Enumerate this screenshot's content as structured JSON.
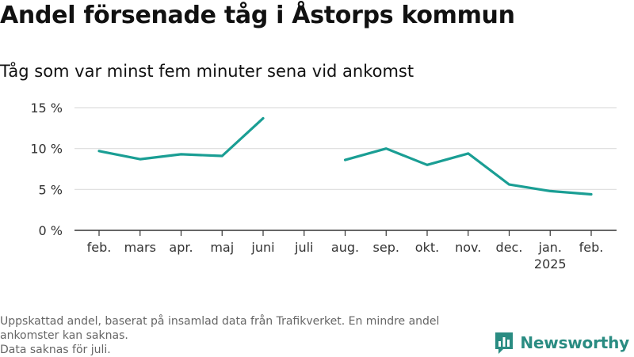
{
  "title": "Andel försenade tåg i Åstorps kommun",
  "subtitle": "Tåg som var minst fem minuter sena vid ankomst",
  "footnote": {
    "line1": "Uppskattad andel, baserat på insamlad data från Trafikverket. En mindre andel ankomster kan saknas.",
    "line2": "Data saknas för juli."
  },
  "brand": {
    "name": "Newsworthy",
    "icon": "newsworthy-logo-icon",
    "color": "#2a8c82"
  },
  "colors": {
    "line": "#1a9e94",
    "grid": "#dddddd",
    "axis": "#333333"
  },
  "chart_data": {
    "type": "line",
    "categories": [
      "feb.",
      "mars",
      "apr.",
      "maj",
      "juni",
      "juli",
      "aug.",
      "sep.",
      "okt.",
      "nov.",
      "dec.",
      "jan.",
      "feb."
    ],
    "category_sublabels": [
      "",
      "",
      "",
      "",
      "",
      "",
      "",
      "",
      "",
      "",
      "",
      "2025",
      ""
    ],
    "series": [
      {
        "values": [
          9.7,
          8.7,
          9.3,
          9.1,
          13.7,
          null,
          8.6,
          10.0,
          8.0,
          9.4,
          5.6,
          4.8,
          4.4
        ]
      }
    ],
    "ylim": [
      0,
      15
    ],
    "yticks": [
      0,
      5,
      10,
      15
    ],
    "ytick_labels": [
      "0 %",
      "5 %",
      "10 %",
      "15 %"
    ],
    "xlabel": "",
    "ylabel": "",
    "grid": true,
    "legend": "none"
  }
}
